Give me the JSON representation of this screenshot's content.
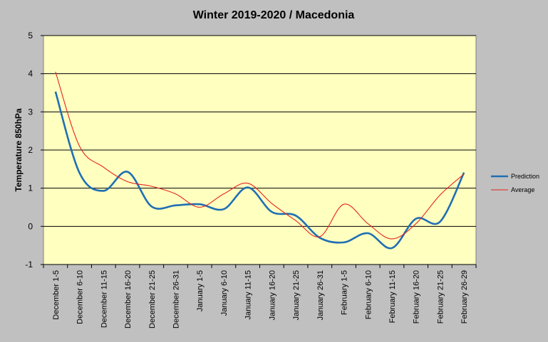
{
  "chart_data": {
    "type": "line",
    "title": "Winter 2019-2020 / Macedonia",
    "xlabel": "",
    "ylabel": "Temperature 850hPa",
    "ylim": [
      -1,
      5
    ],
    "yticks": [
      -1,
      0,
      1,
      2,
      3,
      4,
      5
    ],
    "grid": true,
    "legend_position": "right",
    "categories": [
      "December 1-5",
      "December 6-10",
      "December 11-15",
      "December 16-20",
      "December 21-25",
      "December 26-31",
      "January 1-5",
      "January 6-10",
      "January 11-15",
      "January 16-20",
      "January 21-25",
      "January 26-31",
      "February 1-5",
      "February 6-10",
      "February 11-15",
      "February 16-20",
      "February 21-25",
      "February 26-29"
    ],
    "series": [
      {
        "name": "Prediction",
        "color": "#1f6fb4",
        "values": [
          3.53,
          1.4,
          0.93,
          1.43,
          0.52,
          0.55,
          0.58,
          0.45,
          1.02,
          0.38,
          0.28,
          -0.3,
          -0.42,
          -0.18,
          -0.57,
          0.2,
          0.12,
          1.41
        ]
      },
      {
        "name": "Average",
        "color": "#e8231a",
        "values": [
          4.05,
          2.1,
          1.55,
          1.17,
          1.05,
          0.85,
          0.5,
          0.85,
          1.13,
          0.6,
          0.15,
          -0.27,
          0.58,
          0.07,
          -0.33,
          0.07,
          0.82,
          1.37
        ]
      }
    ],
    "colors": {
      "background": "#c0c0c0",
      "plot_area": "#ffffc0",
      "grid": "#000000"
    }
  }
}
